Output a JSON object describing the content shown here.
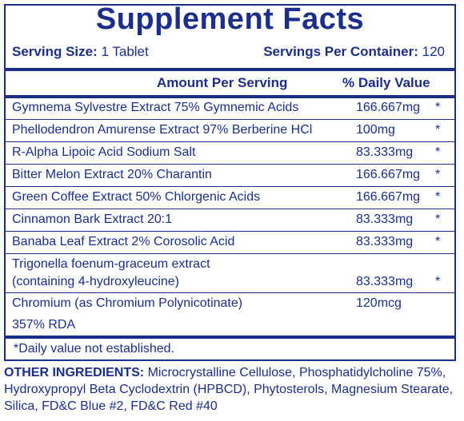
{
  "title": "Supplement Facts",
  "serving_size": {
    "label": "Serving Size:",
    "value": "1 Tablet"
  },
  "servings_per_container": {
    "label": "Servings Per Container:",
    "value": "120"
  },
  "headers": {
    "amount": "Amount Per Serving",
    "dv": "% Daily Value"
  },
  "ingredients": [
    {
      "name": "Gymnema Sylvestre Extract 75% Gymnemic Acids",
      "amount": "166.667mg",
      "dv": "*"
    },
    {
      "name": "Phellodendron Amurense Extract 97% Berberine HCl",
      "amount": "100mg",
      "dv": "*"
    },
    {
      "name": "R-Alpha Lipoic Acid Sodium Salt",
      "amount": "83.333mg",
      "dv": "*"
    },
    {
      "name": "Bitter Melon Extract 20% Charantin",
      "amount": "166.667mg",
      "dv": "*"
    },
    {
      "name": "Green Coffee Extract 50% Chlorgenic Acids",
      "amount": "166.667mg",
      "dv": "*"
    },
    {
      "name": "Cinnamon Bark Extract 20:1",
      "amount": "83.333mg",
      "dv": "*"
    },
    {
      "name": "Banaba Leaf Extract 2% Corosolic Acid",
      "amount": "83.333mg",
      "dv": "*"
    }
  ],
  "trigonella": {
    "line1": "Trigonella foenum-graceum extract",
    "line2": "(containing 4-hydroxyleucine)",
    "amount": "83.333mg",
    "dv": "*"
  },
  "chromium": {
    "name": "Chromium (as Chromium Polynicotinate)",
    "amount": "120mcg",
    "dv": "357% RDA"
  },
  "footnote": "*Daily value not established.",
  "other_ingredients": {
    "label": "OTHER INGREDIENTS:",
    "text": " Microcrystalline Cellulose, Phosphatidylcholine 75%, Hydroxypropyl Beta Cyclodextrin (HPBCD), Phytosterols, Magnesium Stearate, Silica, FD&C Blue #2, FD&C Red #40"
  }
}
